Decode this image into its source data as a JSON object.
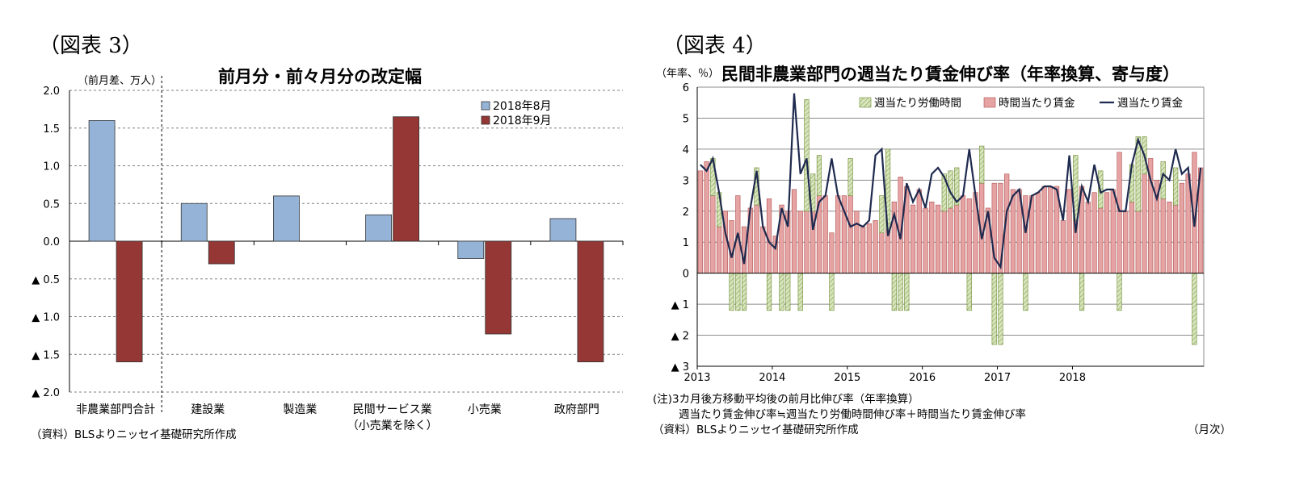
{
  "left": {
    "fig_label": "（図表 3）",
    "unit_label": "（前月差、万人）",
    "source": "（資料）BLSよりニッセイ基礎研究所作成",
    "chart_data": {
      "type": "bar",
      "title": "前月分・前々月分の改定幅",
      "categories": [
        "非農業部門合計",
        "建設業",
        "製造業",
        "民間サービス業",
        "小売業",
        "政府部門"
      ],
      "category_sublabels": [
        "",
        "",
        "",
        "（小売業を除く）",
        "",
        ""
      ],
      "series": [
        {
          "name": "2018年8月",
          "color": "#95b3d7",
          "values": [
            1.6,
            0.5,
            0.6,
            0.35,
            -0.23,
            0.3
          ]
        },
        {
          "name": "2018年9月",
          "color": "#953735",
          "values": [
            -1.6,
            -0.3,
            0.0,
            1.65,
            -1.23,
            -1.6
          ]
        }
      ],
      "ylim": [
        -2.0,
        2.0
      ],
      "yticks": [
        2.0,
        1.5,
        1.0,
        0.5,
        0.0,
        -0.5,
        -1.0,
        -1.5,
        -2.0
      ],
      "ytick_labels": [
        "2.0",
        "1.5",
        "1.0",
        "0.5",
        "0.0",
        "▲ 0.5",
        "▲ 1.0",
        "▲ 1.5",
        "▲ 2.0"
      ],
      "grid": true,
      "legend_position": "top-right"
    }
  },
  "right": {
    "fig_label": "（図表 4）",
    "unit_label": "（年率、％）",
    "x_unit": "（月次）",
    "notes": [
      "(注)3カ月後方移動平均後の前月比伸び率（年率換算）",
      "週当たり賃金伸び率≒週当たり労働時間伸び率＋時間当たり賃金伸び率",
      "（資料）BLSよりニッセイ基礎研究所作成"
    ],
    "chart_data": {
      "type": "bar",
      "title": "民間非農業部門の週当たり賃金伸び率（年率換算、寄与度）",
      "x_start": "2013-01",
      "x_end": "2018-10",
      "xtick_labels": [
        "2013",
        "2014",
        "2015",
        "2016",
        "2017",
        "2018"
      ],
      "ylim": [
        -3,
        6
      ],
      "yticks": [
        6,
        5,
        4,
        3,
        2,
        1,
        0,
        -1,
        -2,
        -3
      ],
      "ytick_labels": [
        "6",
        "5",
        "4",
        "3",
        "2",
        "1",
        "0",
        "▲ 1",
        "▲ 2",
        "▲ 3"
      ],
      "grid": true,
      "legend_position": "top",
      "series": [
        {
          "name": "週当たり労働時間",
          "kind": "bar",
          "color": "#d7e4bd",
          "values": [
            0.0,
            0.0,
            1.2,
            1.1,
            0.0,
            -1.2,
            -1.2,
            -1.2,
            0.0,
            1.2,
            0.0,
            -1.2,
            0.0,
            -1.2,
            -1.2,
            0.0,
            -1.2,
            3.6,
            1.2,
            1.3,
            0.0,
            -1.2,
            0.0,
            0.0,
            1.2,
            0.0,
            0.0,
            0.0,
            0.0,
            1.2,
            2.6,
            -1.2,
            -1.2,
            -1.2,
            0.0,
            0.0,
            0.0,
            0.0,
            0.0,
            1.2,
            1.2,
            1.2,
            0.0,
            -1.2,
            0.0,
            1.2,
            0.0,
            -2.3,
            -2.3,
            0.0,
            0.0,
            0.0,
            -1.2,
            0.0,
            0.0,
            0.0,
            0.0,
            0.0,
            0.0,
            0.0,
            2.1,
            -1.2,
            0.0,
            0.0,
            1.2,
            0.0,
            0.0,
            -1.2,
            0.0,
            1.2,
            2.4,
            1.2,
            0.0,
            0.0,
            1.2,
            0.0,
            1.2,
            0.0,
            0.0,
            -2.3,
            0.0
          ]
        },
        {
          "name": "時間当たり賃金",
          "kind": "bar",
          "color": "#e6a3a3",
          "values": [
            3.3,
            3.6,
            2.5,
            1.5,
            2.0,
            1.7,
            2.5,
            1.5,
            2.1,
            2.2,
            1.5,
            2.4,
            1.2,
            2.2,
            2.0,
            2.7,
            2.0,
            2.0,
            2.0,
            2.5,
            2.5,
            1.3,
            2.5,
            2.5,
            2.5,
            2.0,
            1.5,
            1.6,
            1.7,
            1.3,
            1.4,
            2.3,
            3.1,
            2.8,
            2.2,
            2.7,
            2.1,
            2.3,
            2.2,
            2.0,
            2.1,
            2.2,
            2.5,
            2.4,
            2.6,
            2.9,
            2.1,
            2.9,
            2.9,
            3.2,
            2.7,
            2.7,
            2.5,
            2.5,
            2.6,
            2.8,
            2.8,
            2.8,
            1.7,
            2.7,
            1.7,
            2.8,
            2.3,
            2.6,
            2.1,
            2.6,
            2.7,
            3.9,
            2.0,
            2.3,
            2.0,
            3.2,
            3.7,
            3.0,
            2.4,
            2.3,
            2.2,
            2.9,
            3.2,
            3.9,
            3.4
          ]
        },
        {
          "name": "週当たり賃金",
          "kind": "line",
          "color": "#1f2a4f",
          "values": [
            3.5,
            3.3,
            3.7,
            2.6,
            1.3,
            0.5,
            1.3,
            0.3,
            2.1,
            3.3,
            1.5,
            1.0,
            0.8,
            2.1,
            1.5,
            5.8,
            3.2,
            3.7,
            1.4,
            2.3,
            2.5,
            3.7,
            2.5,
            2.0,
            1.5,
            1.6,
            1.5,
            1.7,
            3.8,
            4.0,
            1.2,
            1.9,
            1.1,
            2.9,
            2.3,
            2.7,
            2.1,
            3.2,
            3.4,
            3.1,
            2.6,
            2.3,
            2.5,
            4.0,
            2.5,
            1.1,
            2.0,
            0.5,
            0.2,
            2.0,
            2.5,
            2.7,
            1.3,
            2.5,
            2.6,
            2.8,
            2.8,
            2.7,
            1.7,
            3.8,
            1.3,
            2.8,
            2.3,
            3.5,
            2.6,
            2.7,
            2.7,
            2.0,
            2.0,
            3.5,
            4.3,
            3.8,
            3.0,
            2.4,
            3.2,
            3.0,
            4.0,
            3.2,
            3.4,
            1.5,
            3.4
          ]
        }
      ]
    }
  }
}
